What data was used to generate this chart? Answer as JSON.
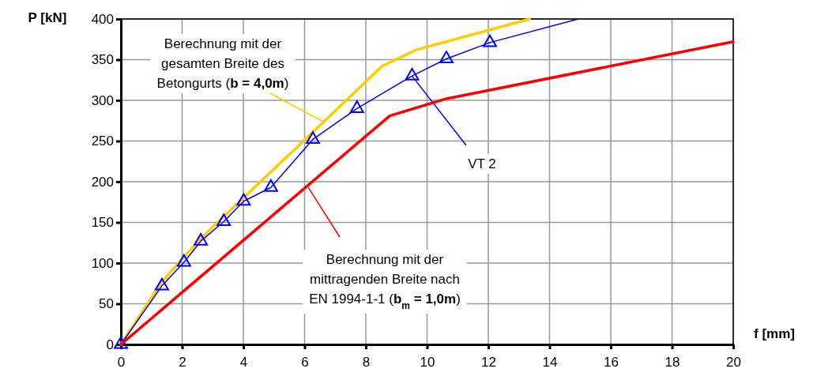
{
  "chart_data": {
    "type": "line",
    "xlabel": "f [mm]",
    "ylabel": "P [kN]",
    "xlim": [
      0,
      20
    ],
    "xticks": [
      0,
      2,
      4,
      6,
      8,
      10,
      12,
      14,
      16,
      18,
      20
    ],
    "ylim": [
      0,
      400
    ],
    "yticks": [
      0,
      50,
      100,
      150,
      200,
      250,
      300,
      350,
      400
    ],
    "grid": true,
    "series": [
      {
        "color": "#ffcc00",
        "marker": "none",
        "x": [
          0,
          1.34,
          2.6,
          4,
          6.27,
          8.53,
          9.64,
          13.35
        ],
        "values": [
          0,
          77,
          130,
          180,
          261,
          342,
          362,
          400
        ]
      },
      {
        "color": "#0000ff",
        "marker": "triangle",
        "x": [
          0,
          1.34,
          2.06,
          2.61,
          3.36,
          4.01,
          4.9,
          6.27,
          7.71,
          9.51,
          10.63,
          12.05
        ],
        "values": [
          0,
          72,
          101,
          127,
          151,
          176,
          193,
          252,
          290,
          330,
          351,
          371
        ]
      },
      {
        "color": "#0000ff",
        "marker": "none",
        "x": [
          12.05,
          14.94
        ],
        "values": [
          371,
          400
        ]
      },
      {
        "color": "#ff0000",
        "marker": "none",
        "x": [
          0,
          8.78,
          10.63,
          20
        ],
        "values": [
          0,
          281,
          302,
          372
        ]
      }
    ],
    "annotations": [
      {
        "text": "Berechnung mit der\ngesamten Breite des\nBetongurts (b = 4,0m)",
        "x": 6.6,
        "y": 274
      },
      {
        "text": "VT 2",
        "x": 9.51,
        "y": 330
      },
      {
        "text": "Berechnung mit der\nmittragenden Breite nach\nEN 1994-1-1 (b$_{m}$ = 1,0m)",
        "x": 6.12,
        "y": 193
      }
    ]
  }
}
